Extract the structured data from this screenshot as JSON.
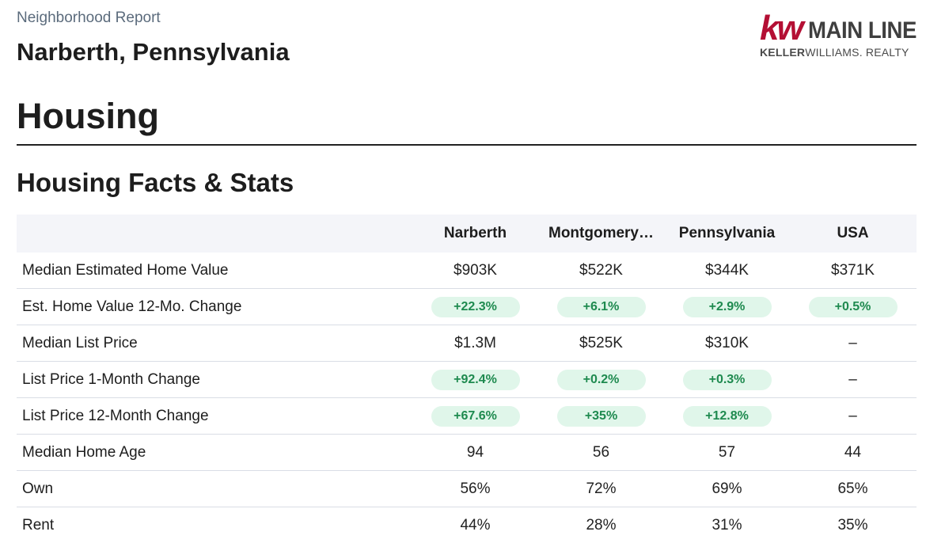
{
  "header": {
    "report_label": "Neighborhood Report",
    "location": "Narberth, Pennsylvania"
  },
  "logo": {
    "kw": "kw",
    "main_line": "MAIN LINE",
    "keller": "KELLER",
    "williams_realty": "WILLIAMS. REALTY",
    "brand_color": "#b40f34"
  },
  "section": {
    "title": "Housing",
    "subtitle": "Housing Facts & Stats"
  },
  "table": {
    "columns": [
      "Narberth",
      "Montgomery…",
      "Pennsylvania",
      "USA"
    ],
    "rows": [
      {
        "label": "Median Estimated Home Value",
        "values": [
          "$903K",
          "$522K",
          "$344K",
          "$371K"
        ]
      },
      {
        "label": "Est. Home Value 12-Mo. Change",
        "values": [
          "+22.3%",
          "+6.1%",
          "+2.9%",
          "+0.5%"
        ]
      },
      {
        "label": "Median List Price",
        "values": [
          "$1.3M",
          "$525K",
          "$310K",
          "–"
        ]
      },
      {
        "label": "List Price 1-Month Change",
        "values": [
          "+92.4%",
          "+0.2%",
          "+0.3%",
          "–"
        ]
      },
      {
        "label": "List Price 12-Month Change",
        "values": [
          "+67.6%",
          "+35%",
          "+12.8%",
          "–"
        ]
      },
      {
        "label": "Median Home Age",
        "values": [
          "94",
          "56",
          "57",
          "44"
        ]
      },
      {
        "label": "Own",
        "values": [
          "56%",
          "72%",
          "69%",
          "65%"
        ]
      },
      {
        "label": "Rent",
        "values": [
          "44%",
          "28%",
          "31%",
          "35%"
        ]
      }
    ],
    "pill_color": "#e0f6ea",
    "pill_text_color": "#1e8a4f"
  }
}
